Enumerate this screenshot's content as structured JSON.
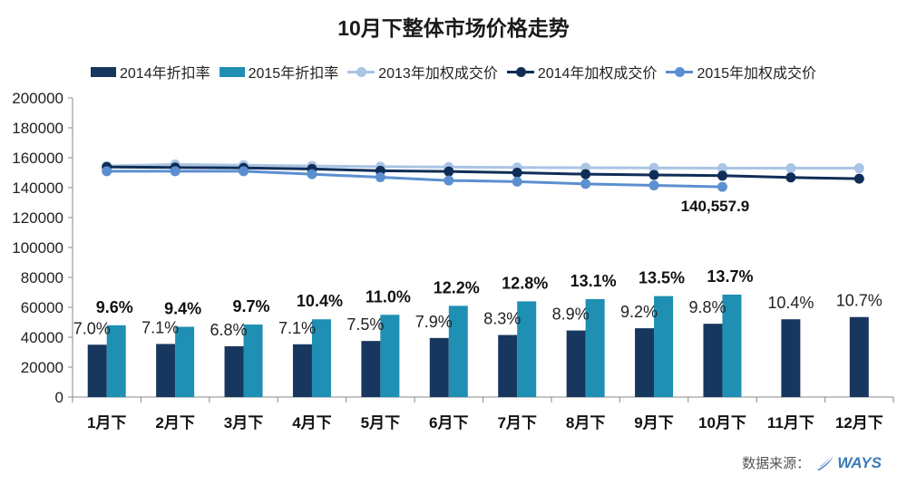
{
  "chart_data": {
    "type": "bar+line",
    "title": "10月下整体市场价格走势",
    "categories": [
      "1月下",
      "2月下",
      "3月下",
      "4月下",
      "5月下",
      "6月下",
      "7月下",
      "8月下",
      "9月下",
      "10月下",
      "11月下",
      "12月下"
    ],
    "ylim": [
      0,
      200000
    ],
    "yticks": [
      "0",
      "20000",
      "40000",
      "60000",
      "80000",
      "100000",
      "120000",
      "140000",
      "160000",
      "180000",
      "200000"
    ],
    "bar_series": [
      {
        "name": "2014年折扣率",
        "color": "#17375e",
        "values": [
          35000,
          35500,
          34000,
          35300,
          37500,
          39500,
          41500,
          44500,
          46000,
          49000,
          52000,
          53500
        ],
        "labels": [
          "7.0%",
          "7.1%",
          "6.8%",
          "7.1%",
          "7.5%",
          "7.9%",
          "8.3%",
          "8.9%",
          "9.2%",
          "9.8%",
          "10.4%",
          "10.7%"
        ]
      },
      {
        "name": "2015年折扣率",
        "color": "#1f8fb3",
        "values": [
          48000,
          47000,
          48500,
          52000,
          55000,
          61000,
          64000,
          65500,
          67500,
          68500,
          null,
          null
        ],
        "labels": [
          "9.6%",
          "9.4%",
          "9.7%",
          "10.4%",
          "11.0%",
          "12.2%",
          "12.8%",
          "13.1%",
          "13.5%",
          "13.7%",
          null,
          null
        ]
      }
    ],
    "line_series": [
      {
        "name": "2013年加权成交价",
        "color": "#a9c4e4",
        "values": [
          154500,
          155500,
          155000,
          154500,
          154000,
          153800,
          153500,
          153300,
          153200,
          153000,
          153000,
          153000
        ]
      },
      {
        "name": "2014年加权成交价",
        "color": "#0f2d57",
        "values": [
          153800,
          153500,
          153200,
          152500,
          151300,
          150800,
          150000,
          149000,
          148500,
          148000,
          146800,
          146000
        ]
      },
      {
        "name": "2015年加权成交价",
        "color": "#5b8fd0",
        "values": [
          151000,
          151000,
          151000,
          149000,
          147000,
          144800,
          144000,
          142500,
          141500,
          140557.9,
          null,
          null
        ]
      }
    ],
    "annotations": [
      {
        "series": "2015年加权成交价",
        "index": 9,
        "text": "140,557.9"
      }
    ]
  },
  "source": {
    "label": "数据来源：",
    "logo_text": "WAYS"
  }
}
